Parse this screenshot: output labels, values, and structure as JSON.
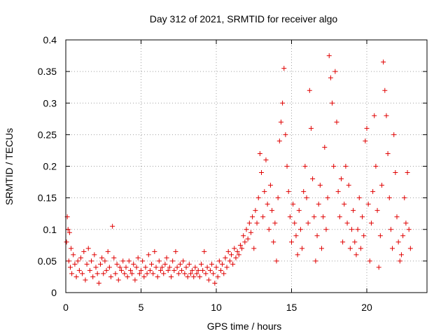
{
  "chart_data": {
    "type": "scatter",
    "title": "Day 312 of 2021, SRMTID for receiver algo",
    "xlabel": "GPS time / hours",
    "ylabel": "SRMTID / TECUs",
    "xlim": [
      0,
      24
    ],
    "ylim": [
      0,
      0.4
    ],
    "x_ticks": [
      0,
      5,
      10,
      15,
      20
    ],
    "x_tick_labels": [
      "0",
      "5",
      "10",
      "15",
      "20"
    ],
    "y_ticks": [
      0,
      0.05,
      0.1,
      0.15,
      0.2,
      0.25,
      0.3,
      0.35,
      0.4
    ],
    "y_tick_labels": [
      "0",
      "0.05",
      "0.1",
      "0.15",
      "0.2",
      "0.25",
      "0.3",
      "0.35",
      "0.4"
    ],
    "grid": true,
    "marker": "+",
    "color": "#e00000",
    "series": [
      {
        "name": "SRMTID",
        "points": [
          [
            0.05,
            0.08
          ],
          [
            0.1,
            0.12
          ],
          [
            0.15,
            0.1
          ],
          [
            0.2,
            0.05
          ],
          [
            0.25,
            0.095
          ],
          [
            0.3,
            0.04
          ],
          [
            0.35,
            0.07
          ],
          [
            0.4,
            0.03
          ],
          [
            0.5,
            0.06
          ],
          [
            0.6,
            0.045
          ],
          [
            0.7,
            0.025
          ],
          [
            0.8,
            0.05
          ],
          [
            0.9,
            0.035
          ],
          [
            1.0,
            0.055
          ],
          [
            1.1,
            0.03
          ],
          [
            1.2,
            0.065
          ],
          [
            1.3,
            0.02
          ],
          [
            1.4,
            0.045
          ],
          [
            1.5,
            0.07
          ],
          [
            1.6,
            0.035
          ],
          [
            1.7,
            0.05
          ],
          [
            1.8,
            0.025
          ],
          [
            1.9,
            0.06
          ],
          [
            2.0,
            0.04
          ],
          [
            2.1,
            0.03
          ],
          [
            2.2,
            0.015
          ],
          [
            2.3,
            0.045
          ],
          [
            2.4,
            0.055
          ],
          [
            2.5,
            0.03
          ],
          [
            2.6,
            0.05
          ],
          [
            2.7,
            0.035
          ],
          [
            2.8,
            0.065
          ],
          [
            2.9,
            0.04
          ],
          [
            3.0,
            0.025
          ],
          [
            3.1,
            0.105
          ],
          [
            3.2,
            0.055
          ],
          [
            3.3,
            0.03
          ],
          [
            3.4,
            0.045
          ],
          [
            3.5,
            0.02
          ],
          [
            3.6,
            0.04
          ],
          [
            3.7,
            0.035
          ],
          [
            3.8,
            0.05
          ],
          [
            3.9,
            0.03
          ],
          [
            4.0,
            0.04
          ],
          [
            4.1,
            0.025
          ],
          [
            4.2,
            0.05
          ],
          [
            4.3,
            0.035
          ],
          [
            4.4,
            0.03
          ],
          [
            4.5,
            0.045
          ],
          [
            4.6,
            0.02
          ],
          [
            4.7,
            0.04
          ],
          [
            4.8,
            0.055
          ],
          [
            4.9,
            0.03
          ],
          [
            5.0,
            0.035
          ],
          [
            5.1,
            0.05
          ],
          [
            5.2,
            0.025
          ],
          [
            5.3,
            0.04
          ],
          [
            5.4,
            0.03
          ],
          [
            5.5,
            0.06
          ],
          [
            5.6,
            0.035
          ],
          [
            5.7,
            0.045
          ],
          [
            5.8,
            0.03
          ],
          [
            5.9,
            0.065
          ],
          [
            6.0,
            0.04
          ],
          [
            6.1,
            0.025
          ],
          [
            6.2,
            0.05
          ],
          [
            6.3,
            0.035
          ],
          [
            6.4,
            0.04
          ],
          [
            6.5,
            0.03
          ],
          [
            6.6,
            0.045
          ],
          [
            6.7,
            0.055
          ],
          [
            6.8,
            0.035
          ],
          [
            6.9,
            0.04
          ],
          [
            7.0,
            0.025
          ],
          [
            7.1,
            0.05
          ],
          [
            7.2,
            0.035
          ],
          [
            7.3,
            0.065
          ],
          [
            7.4,
            0.04
          ],
          [
            7.5,
            0.03
          ],
          [
            7.6,
            0.045
          ],
          [
            7.7,
            0.035
          ],
          [
            7.8,
            0.05
          ],
          [
            7.9,
            0.03
          ],
          [
            8.0,
            0.04
          ],
          [
            8.1,
            0.025
          ],
          [
            8.2,
            0.045
          ],
          [
            8.3,
            0.03
          ],
          [
            8.4,
            0.035
          ],
          [
            8.5,
            0.025
          ],
          [
            8.6,
            0.04
          ],
          [
            8.7,
            0.03
          ],
          [
            8.8,
            0.035
          ],
          [
            8.9,
            0.025
          ],
          [
            9.0,
            0.045
          ],
          [
            9.1,
            0.035
          ],
          [
            9.2,
            0.065
          ],
          [
            9.3,
            0.03
          ],
          [
            9.4,
            0.04
          ],
          [
            9.5,
            0.02
          ],
          [
            9.6,
            0.035
          ],
          [
            9.7,
            0.045
          ],
          [
            9.8,
            0.03
          ],
          [
            9.9,
            0.015
          ],
          [
            10.0,
            0.04
          ],
          [
            10.1,
            0.025
          ],
          [
            10.2,
            0.05
          ],
          [
            10.3,
            0.035
          ],
          [
            10.4,
            0.045
          ],
          [
            10.5,
            0.03
          ],
          [
            10.6,
            0.055
          ],
          [
            10.7,
            0.04
          ],
          [
            10.8,
            0.065
          ],
          [
            10.9,
            0.05
          ],
          [
            11.0,
            0.06
          ],
          [
            11.1,
            0.045
          ],
          [
            11.2,
            0.07
          ],
          [
            11.3,
            0.055
          ],
          [
            11.4,
            0.065
          ],
          [
            11.5,
            0.06
          ],
          [
            11.6,
            0.075
          ],
          [
            11.7,
            0.07
          ],
          [
            11.8,
            0.09
          ],
          [
            11.9,
            0.08
          ],
          [
            12.0,
            0.1
          ],
          [
            12.1,
            0.085
          ],
          [
            12.2,
            0.11
          ],
          [
            12.3,
            0.095
          ],
          [
            12.4,
            0.12
          ],
          [
            12.5,
            0.07
          ],
          [
            12.6,
            0.13
          ],
          [
            12.7,
            0.11
          ],
          [
            12.8,
            0.15
          ],
          [
            12.9,
            0.22
          ],
          [
            13.0,
            0.19
          ],
          [
            13.1,
            0.12
          ],
          [
            13.2,
            0.16
          ],
          [
            13.3,
            0.21
          ],
          [
            13.4,
            0.14
          ],
          [
            13.5,
            0.1
          ],
          [
            13.6,
            0.17
          ],
          [
            13.7,
            0.13
          ],
          [
            13.8,
            0.08
          ],
          [
            13.9,
            0.11
          ],
          [
            14.0,
            0.05
          ],
          [
            14.1,
            0.15
          ],
          [
            14.2,
            0.24
          ],
          [
            14.3,
            0.27
          ],
          [
            14.4,
            0.3
          ],
          [
            14.5,
            0.355
          ],
          [
            14.6,
            0.25
          ],
          [
            14.7,
            0.2
          ],
          [
            14.8,
            0.16
          ],
          [
            14.9,
            0.12
          ],
          [
            15.0,
            0.08
          ],
          [
            15.1,
            0.14
          ],
          [
            15.2,
            0.11
          ],
          [
            15.3,
            0.09
          ],
          [
            15.4,
            0.06
          ],
          [
            15.5,
            0.13
          ],
          [
            15.6,
            0.1
          ],
          [
            15.7,
            0.07
          ],
          [
            15.8,
            0.16
          ],
          [
            15.9,
            0.2
          ],
          [
            16.0,
            0.15
          ],
          [
            16.1,
            0.11
          ],
          [
            16.2,
            0.32
          ],
          [
            16.3,
            0.26
          ],
          [
            16.4,
            0.18
          ],
          [
            16.5,
            0.12
          ],
          [
            16.6,
            0.05
          ],
          [
            16.7,
            0.09
          ],
          [
            16.8,
            0.14
          ],
          [
            16.9,
            0.17
          ],
          [
            17.0,
            0.07
          ],
          [
            17.1,
            0.12
          ],
          [
            17.2,
            0.23
          ],
          [
            17.3,
            0.1
          ],
          [
            17.4,
            0.15
          ],
          [
            17.5,
            0.375
          ],
          [
            17.6,
            0.34
          ],
          [
            17.7,
            0.3
          ],
          [
            17.8,
            0.2
          ],
          [
            17.9,
            0.35
          ],
          [
            18.0,
            0.27
          ],
          [
            18.1,
            0.16
          ],
          [
            18.2,
            0.12
          ],
          [
            18.3,
            0.18
          ],
          [
            18.4,
            0.08
          ],
          [
            18.5,
            0.14
          ],
          [
            18.6,
            0.2
          ],
          [
            18.7,
            0.11
          ],
          [
            18.8,
            0.17
          ],
          [
            18.9,
            0.07
          ],
          [
            19.0,
            0.1
          ],
          [
            19.1,
            0.13
          ],
          [
            19.2,
            0.08
          ],
          [
            19.3,
            0.06
          ],
          [
            19.4,
            0.1
          ],
          [
            19.5,
            0.15
          ],
          [
            19.6,
            0.07
          ],
          [
            19.7,
            0.12
          ],
          [
            19.8,
            0.09
          ],
          [
            19.9,
            0.24
          ],
          [
            20.0,
            0.26
          ],
          [
            20.1,
            0.14
          ],
          [
            20.2,
            0.05
          ],
          [
            20.3,
            0.11
          ],
          [
            20.4,
            0.16
          ],
          [
            20.5,
            0.28
          ],
          [
            20.6,
            0.2
          ],
          [
            20.7,
            0.13
          ],
          [
            20.8,
            0.04
          ],
          [
            20.9,
            0.09
          ],
          [
            21.0,
            0.17
          ],
          [
            21.1,
            0.365
          ],
          [
            21.2,
            0.32
          ],
          [
            21.3,
            0.28
          ],
          [
            21.4,
            0.22
          ],
          [
            21.5,
            0.15
          ],
          [
            21.6,
            0.1
          ],
          [
            21.7,
            0.07
          ],
          [
            21.8,
            0.25
          ],
          [
            21.9,
            0.19
          ],
          [
            22.0,
            0.12
          ],
          [
            22.1,
            0.08
          ],
          [
            22.2,
            0.05
          ],
          [
            22.3,
            0.06
          ],
          [
            22.4,
            0.09
          ],
          [
            22.5,
            0.15
          ],
          [
            22.6,
            0.11
          ],
          [
            22.7,
            0.19
          ],
          [
            22.8,
            0.1
          ],
          [
            22.9,
            0.07
          ]
        ]
      }
    ]
  }
}
